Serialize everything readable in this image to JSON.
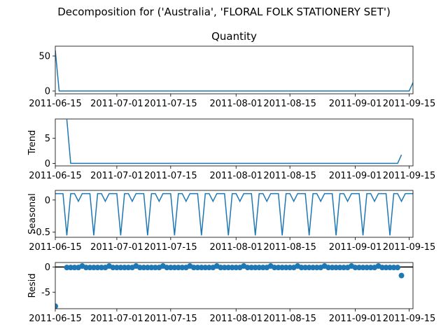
{
  "suptitle": "Decomposition for ('Australia', 'FLORAL FOLK STATIONERY SET')",
  "chart_data": [
    {
      "type": "line",
      "panel": "observed",
      "title": "Quantity",
      "ylabel": "",
      "x_range": [
        "2011-06-15",
        "2011-09-16"
      ],
      "ylim": [
        -4,
        64
      ],
      "yticks": [
        0,
        50
      ],
      "xtick_labels": [
        "2011-06-15",
        "2011-07-01",
        "2011-07-15",
        "2011-08-01",
        "2011-08-15",
        "2011-09-01",
        "2011-09-15"
      ],
      "points": [
        [
          "2011-06-15",
          58
        ],
        [
          "2011-06-16",
          0
        ],
        [
          "2011-09-15",
          0
        ],
        [
          "2011-09-16",
          12
        ]
      ],
      "color": "#1f77b4"
    },
    {
      "type": "line",
      "panel": "trend",
      "title": "",
      "ylabel": "Trend",
      "x_range": [
        "2011-06-15",
        "2011-09-16"
      ],
      "ylim": [
        -0.5,
        8.8
      ],
      "yticks": [
        0,
        5
      ],
      "xtick_labels": [
        "2011-06-15",
        "2011-07-01",
        "2011-07-15",
        "2011-08-01",
        "2011-08-15",
        "2011-09-01",
        "2011-09-15"
      ],
      "points": [
        [
          "2011-06-18",
          8.7
        ],
        [
          "2011-06-19",
          0
        ],
        [
          "2011-09-12",
          0
        ],
        [
          "2011-09-13",
          1.7
        ]
      ],
      "color": "#1f77b4"
    },
    {
      "type": "line",
      "panel": "seasonal",
      "title": "",
      "ylabel": "Seasonal",
      "x_range": [
        "2011-06-15",
        "2011-09-16"
      ],
      "ylim": [
        -0.58,
        0.15
      ],
      "yticks": [
        -0.5,
        0.0
      ],
      "xtick_labels": [
        "2011-06-15",
        "2011-07-01",
        "2011-07-15",
        "2011-08-01",
        "2011-08-15",
        "2011-09-01",
        "2011-09-15"
      ],
      "period_days": 7,
      "start": "2011-06-15",
      "end": "2011-09-16",
      "pattern": [
        0.1,
        0.1,
        0.1,
        -0.55,
        0.1,
        0.1,
        -0.02
      ],
      "color": "#1f77b4"
    },
    {
      "type": "scatter",
      "panel": "resid",
      "title": "",
      "ylabel": "Resid",
      "x_range": [
        "2011-06-15",
        "2011-09-16"
      ],
      "ylim": [
        -8.3,
        0.9
      ],
      "yticks": [
        -5,
        0
      ],
      "xtick_labels": [
        "2011-06-15",
        "2011-07-01",
        "2011-07-15",
        "2011-08-01",
        "2011-08-15",
        "2011-09-01",
        "2011-09-15"
      ],
      "zero_line": true,
      "default_value": -0.1,
      "start": "2011-06-18",
      "end": "2011-09-13",
      "weekly_peak": 0.2,
      "outliers": [
        [
          "2011-06-15",
          -7.8
        ],
        [
          "2011-09-13",
          -1.7
        ]
      ],
      "color": "#1f77b4"
    }
  ]
}
